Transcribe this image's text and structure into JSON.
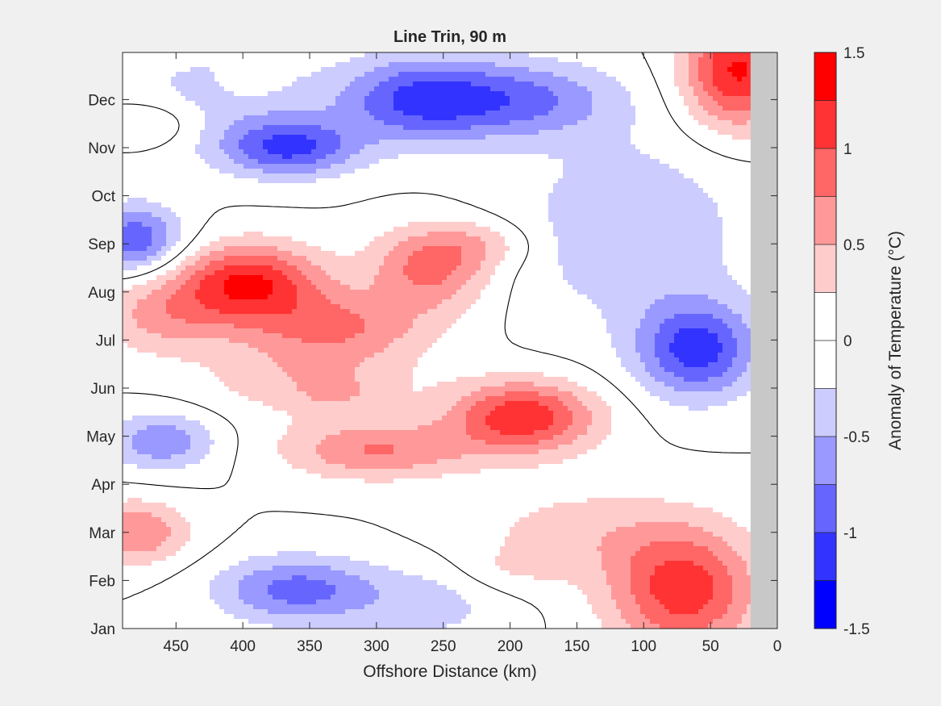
{
  "chart_data": {
    "type": "heatmap",
    "title": "Line Trin, 90 m",
    "xlabel": "Offshore Distance (km)",
    "ylabel": "",
    "colorbar_label": "Anomaly of Temperature (°C)",
    "x_direction": "reversed",
    "xlim": [
      0,
      490
    ],
    "x_ticks": [
      450,
      400,
      350,
      300,
      250,
      200,
      150,
      100,
      50,
      0
    ],
    "x_tick_labels": [
      "450",
      "400",
      "350",
      "300",
      "250",
      "200",
      "150",
      "100",
      "50",
      "0"
    ],
    "y_ticks": [
      1,
      2,
      3,
      4,
      5,
      6,
      7,
      8,
      9,
      10,
      11,
      12
    ],
    "y_tick_labels": [
      "Jan",
      "Feb",
      "Mar",
      "Apr",
      "May",
      "Jun",
      "Jul",
      "Aug",
      "Sep",
      "Oct",
      "Nov",
      "Dec"
    ],
    "ylim": [
      1,
      12.98
    ],
    "clim": [
      -1.5,
      1.5
    ],
    "colorbar_ticks": [
      1.5,
      1,
      0.5,
      0,
      -0.5,
      -1,
      -1.5
    ],
    "colorbar_tick_labels": [
      "1.5",
      "1",
      "0.5",
      "0",
      "-0.5",
      "-1",
      "-1.5"
    ],
    "levels": [
      -1.5,
      -1.25,
      -1.0,
      -0.75,
      -0.5,
      -0.25,
      0,
      0.25,
      0.5,
      0.75,
      1.0,
      1.25,
      1.5
    ],
    "level_colors": [
      "#0000ff",
      "#3333ff",
      "#6666ff",
      "#9999ff",
      "#ccccff",
      "#ffffff",
      "#ffffff",
      "#ffcccc",
      "#ff9999",
      "#ff6666",
      "#ff3333",
      "#ff0000"
    ],
    "masked_region": {
      "x_from": 0,
      "x_to": 20,
      "color": "#c8c8c8"
    },
    "zero_contour": true,
    "features": [
      {
        "x": 395,
        "y": 8.2,
        "amp": 1.25,
        "sx": 55,
        "sy": 0.8
      },
      {
        "x": 260,
        "y": 8.5,
        "amp": 0.85,
        "sx": 45,
        "sy": 0.85
      },
      {
        "x": 330,
        "y": 7.3,
        "amp": 0.7,
        "sx": 70,
        "sy": 0.7
      },
      {
        "x": 190,
        "y": 5.4,
        "amp": 1.2,
        "sx": 55,
        "sy": 0.75
      },
      {
        "x": 300,
        "y": 4.7,
        "amp": 0.75,
        "sx": 70,
        "sy": 0.6
      },
      {
        "x": 350,
        "y": 6.2,
        "amp": 0.45,
        "sx": 80,
        "sy": 0.8
      },
      {
        "x": 460,
        "y": 7.5,
        "amp": 0.55,
        "sx": 50,
        "sy": 0.8
      },
      {
        "x": 480,
        "y": 3.0,
        "amp": 0.75,
        "sx": 40,
        "sy": 0.65
      },
      {
        "x": 470,
        "y": 11.5,
        "amp": 0.4,
        "sx": 40,
        "sy": 0.5
      },
      {
        "x": 70,
        "y": 1.8,
        "amp": 1.15,
        "sx": 55,
        "sy": 1.3
      },
      {
        "x": 30,
        "y": 12.6,
        "amp": 1.3,
        "sx": 40,
        "sy": 1.2
      },
      {
        "x": 150,
        "y": 3.0,
        "amp": 0.35,
        "sx": 80,
        "sy": 1.0
      },
      {
        "x": 365,
        "y": 11.0,
        "amp": -1.0,
        "sx": 50,
        "sy": 0.6
      },
      {
        "x": 270,
        "y": 12.0,
        "amp": -0.95,
        "sx": 60,
        "sy": 0.9
      },
      {
        "x": 190,
        "y": 12.0,
        "amp": -0.75,
        "sx": 70,
        "sy": 0.8
      },
      {
        "x": 60,
        "y": 6.8,
        "amp": -1.1,
        "sx": 45,
        "sy": 1.0
      },
      {
        "x": 110,
        "y": 9.3,
        "amp": -0.45,
        "sx": 90,
        "sy": 2.0
      },
      {
        "x": 480,
        "y": 9.1,
        "amp": -0.95,
        "sx": 35,
        "sy": 0.7
      },
      {
        "x": 460,
        "y": 4.9,
        "amp": -0.7,
        "sx": 40,
        "sy": 0.6
      },
      {
        "x": 360,
        "y": 1.8,
        "amp": -0.85,
        "sx": 60,
        "sy": 0.7
      },
      {
        "x": 260,
        "y": 1.5,
        "amp": -0.35,
        "sx": 60,
        "sy": 0.8
      },
      {
        "x": 420,
        "y": 12.0,
        "amp": -0.35,
        "sx": 80,
        "sy": 1.2
      },
      {
        "x": 395,
        "y": 12.4,
        "amp": 0.3,
        "sx": 20,
        "sy": 0.3
      },
      {
        "x": 220,
        "y": 9.0,
        "amp": 0.35,
        "sx": 40,
        "sy": 0.5
      },
      {
        "x": 330,
        "y": 5.9,
        "amp": 0.25,
        "sx": 25,
        "sy": 0.3
      },
      {
        "x": 200,
        "y": 2.2,
        "amp": 0.2,
        "sx": 40,
        "sy": 0.5
      }
    ]
  }
}
